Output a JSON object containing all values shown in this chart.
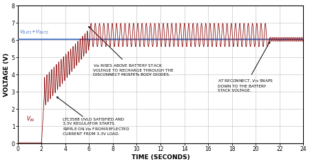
{
  "title": "",
  "xlabel": "TIME (SECONDS)",
  "ylabel": "VOLTAGE (V)",
  "xlim": [
    0,
    24
  ],
  "ylim": [
    0,
    8
  ],
  "xticks": [
    0,
    2,
    4,
    6,
    8,
    10,
    12,
    14,
    16,
    18,
    20,
    22,
    24
  ],
  "yticks": [
    0,
    1,
    2,
    3,
    4,
    5,
    6,
    7,
    8
  ],
  "vbat_level": 6.05,
  "vbat_color": "#4472C4",
  "vin_color": "#8B0000",
  "background_color": "#ffffff",
  "grid_color": "#bbbbbb",
  "phase1_end": 2.0,
  "phase2_end": 2.25,
  "phase3_end": 6.0,
  "phase4_end": 21.0,
  "phase5_end": 21.15,
  "phase3_ripple_freq": 5.0,
  "phase3_ripple_amp": 0.85,
  "phase4_base": 6.3,
  "phase4_ripple_freq": 2.8,
  "phase4_ripple_amp": 0.68,
  "phase6_ripple_amp": 0.12,
  "phase6_ripple_freq": 6.0
}
